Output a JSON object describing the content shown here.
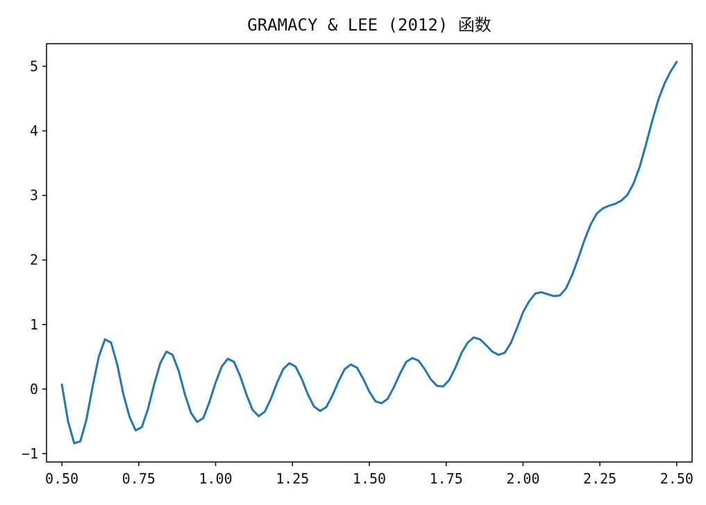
{
  "chart_data": {
    "type": "line",
    "title": "GRAMACY & LEE (2012) 函数",
    "xlabel": "",
    "ylabel": "",
    "xlim": [
      0.45,
      2.55
    ],
    "ylim": [
      -1.13,
      5.35
    ],
    "x_ticks": [
      0.5,
      0.75,
      1.0,
      1.25,
      1.5,
      1.75,
      2.0,
      2.25,
      2.5
    ],
    "x_tick_labels": [
      "0.50",
      "0.75",
      "1.00",
      "1.25",
      "1.50",
      "1.75",
      "2.00",
      "2.25",
      "2.50"
    ],
    "y_ticks": [
      -1,
      0,
      1,
      2,
      3,
      4,
      5
    ],
    "y_tick_labels": [
      "−1",
      "0",
      "1",
      "2",
      "3",
      "4",
      "5"
    ],
    "grid": false,
    "series": [
      {
        "color": "#1f77b4",
        "x": [
          0.5,
          0.52,
          0.54,
          0.56,
          0.58,
          0.6,
          0.62,
          0.64,
          0.66,
          0.68,
          0.7,
          0.72,
          0.74,
          0.76,
          0.78,
          0.8,
          0.82,
          0.84,
          0.86,
          0.88,
          0.9,
          0.92,
          0.94,
          0.96,
          0.98,
          1.0,
          1.02,
          1.04,
          1.06,
          1.08,
          1.1,
          1.12,
          1.14,
          1.16,
          1.18,
          1.2,
          1.22,
          1.24,
          1.26,
          1.28,
          1.3,
          1.32,
          1.34,
          1.36,
          1.38,
          1.4,
          1.42,
          1.44,
          1.46,
          1.48,
          1.5,
          1.52,
          1.54,
          1.56,
          1.58,
          1.6,
          1.62,
          1.64,
          1.66,
          1.68,
          1.7,
          1.72,
          1.74,
          1.76,
          1.78,
          1.8,
          1.82,
          1.84,
          1.86,
          1.88,
          1.9,
          1.92,
          1.94,
          1.96,
          1.98,
          2.0,
          2.02,
          2.04,
          2.06,
          2.08,
          2.1,
          2.12,
          2.14,
          2.16,
          2.18,
          2.2,
          2.22,
          2.24,
          2.26,
          2.28,
          2.3,
          2.32,
          2.34,
          2.36,
          2.38,
          2.4,
          2.42,
          2.44,
          2.46,
          2.48,
          2.5
        ],
        "values": [
          0.07,
          -0.5,
          -0.84,
          -0.81,
          -0.47,
          0.04,
          0.5,
          0.77,
          0.72,
          0.38,
          -0.08,
          -0.43,
          -0.64,
          -0.59,
          -0.31,
          0.07,
          0.4,
          0.58,
          0.53,
          0.28,
          -0.08,
          -0.37,
          -0.51,
          -0.45,
          -0.2,
          0.1,
          0.35,
          0.47,
          0.42,
          0.2,
          -0.08,
          -0.32,
          -0.42,
          -0.35,
          -0.15,
          0.1,
          0.31,
          0.4,
          0.35,
          0.16,
          -0.08,
          -0.27,
          -0.34,
          -0.28,
          -0.1,
          0.12,
          0.31,
          0.38,
          0.33,
          0.16,
          -0.04,
          -0.19,
          -0.22,
          -0.15,
          0.03,
          0.24,
          0.42,
          0.48,
          0.44,
          0.31,
          0.15,
          0.05,
          0.04,
          0.14,
          0.33,
          0.56,
          0.72,
          0.8,
          0.77,
          0.68,
          0.58,
          0.53,
          0.56,
          0.71,
          0.94,
          1.19,
          1.36,
          1.48,
          1.5,
          1.47,
          1.44,
          1.45,
          1.56,
          1.77,
          2.03,
          2.31,
          2.55,
          2.72,
          2.8,
          2.84,
          2.87,
          2.92,
          3.01,
          3.19,
          3.45,
          3.79,
          4.15,
          4.48,
          4.73,
          4.92,
          5.07
        ]
      }
    ]
  }
}
